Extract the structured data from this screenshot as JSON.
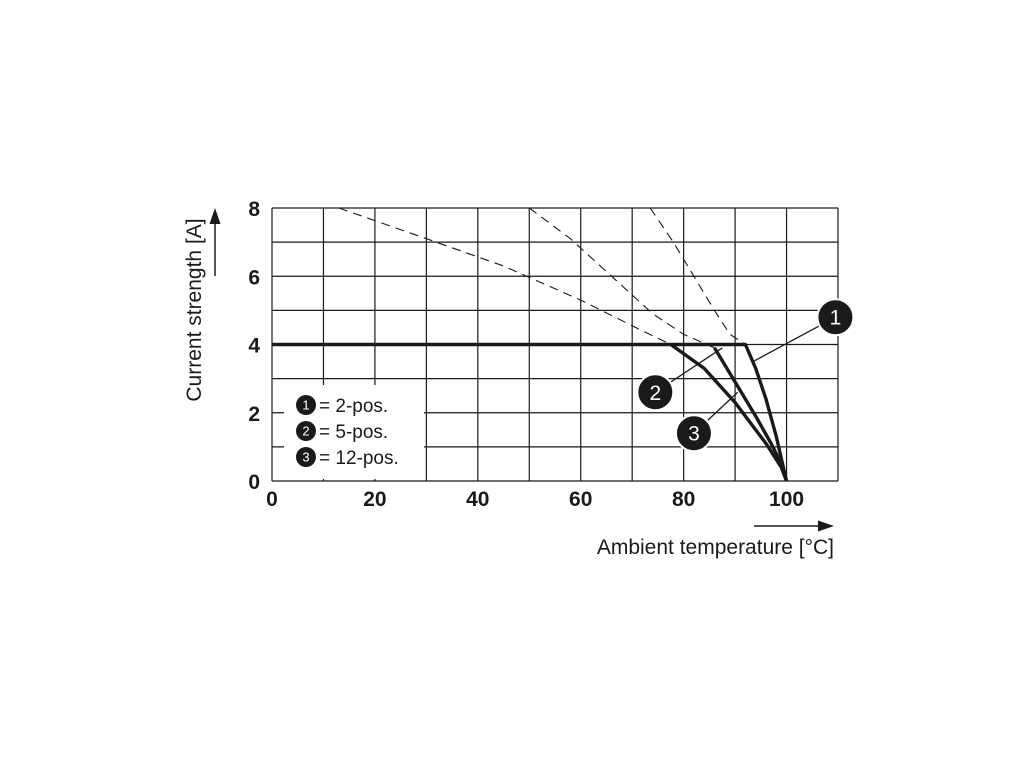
{
  "chart_data": {
    "type": "line",
    "xlabel": "Ambient temperature [°C]",
    "ylabel": "Current strength [A]",
    "xlim": [
      0,
      110
    ],
    "ylim": [
      0,
      8
    ],
    "x_ticks": [
      0,
      20,
      40,
      60,
      80,
      100
    ],
    "y_ticks": [
      0,
      2,
      4,
      6,
      8
    ],
    "grid": true,
    "grid_x_step": 10,
    "grid_y_step": 1,
    "legend_position": "lower-left",
    "legend": [
      {
        "marker": "1",
        "label": "= 2-pos."
      },
      {
        "marker": "2",
        "label": "= 5-pos."
      },
      {
        "marker": "3",
        "label": "= 12-pos."
      }
    ],
    "series": [
      {
        "marker": "1",
        "solid": [
          [
            0,
            4
          ],
          [
            92,
            4
          ],
          [
            94,
            3.3
          ],
          [
            96,
            2.4
          ],
          [
            98,
            1.3
          ],
          [
            100,
            0
          ]
        ],
        "dashed": [
          [
            73.5,
            8
          ],
          [
            78,
            7
          ],
          [
            82,
            6
          ],
          [
            86,
            5
          ],
          [
            89,
            4.3
          ],
          [
            92,
            4
          ]
        ]
      },
      {
        "marker": "2",
        "solid": [
          [
            86,
            3.9
          ],
          [
            90,
            2.9
          ],
          [
            94,
            1.9
          ],
          [
            97,
            1.1
          ],
          [
            99,
            0.5
          ],
          [
            100,
            0
          ]
        ],
        "dashed": [
          [
            50,
            8
          ],
          [
            58,
            7.1
          ],
          [
            66,
            6
          ],
          [
            74,
            4.9
          ],
          [
            80,
            4.3
          ],
          [
            86,
            3.9
          ]
        ]
      },
      {
        "marker": "3",
        "solid": [
          [
            77.5,
            4
          ],
          [
            84,
            3.3
          ],
          [
            90,
            2.3
          ],
          [
            96,
            1.1
          ],
          [
            99,
            0.4
          ],
          [
            100,
            0
          ]
        ],
        "dashed": [
          [
            13,
            8
          ],
          [
            30,
            7.1
          ],
          [
            45,
            6.3
          ],
          [
            60,
            5.3
          ],
          [
            72,
            4.4
          ],
          [
            77.5,
            4
          ]
        ]
      }
    ],
    "callouts": [
      {
        "marker": "1",
        "series": "1",
        "at": [
          109.5,
          4.8
        ],
        "target": [
          93.5,
          3.5
        ]
      },
      {
        "marker": "2",
        "series": "2",
        "at": [
          74.5,
          2.6
        ],
        "target": [
          87.5,
          3.9
        ]
      },
      {
        "marker": "3",
        "series": "3",
        "at": [
          82,
          1.4
        ],
        "target": [
          90.5,
          2.6
        ]
      }
    ]
  }
}
